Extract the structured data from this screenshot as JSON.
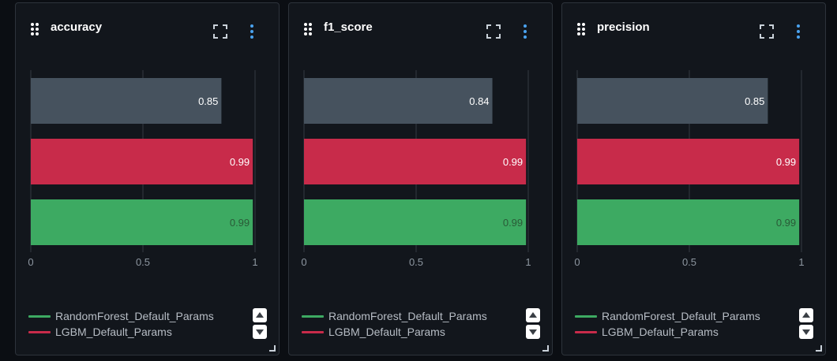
{
  "colors": {
    "RandomForest_Default_Params": "#3daa62",
    "LGBM_Default_Params": "#c82b4a",
    "unnamed": "#46525e",
    "axis_text": "#8d96a0",
    "grid": "#343a42"
  },
  "legend": [
    {
      "label": "RandomForest_Default_Params",
      "color_key": "RandomForest_Default_Params"
    },
    {
      "label": "LGBM_Default_Params",
      "color_key": "LGBM_Default_Params"
    }
  ],
  "chart_data": [
    {
      "type": "bar",
      "orientation": "horizontal",
      "title": "accuracy",
      "xlim": [
        0,
        1
      ],
      "x_ticks": [
        "0",
        "0.5",
        "1"
      ],
      "grid": true,
      "legend_position": "bottom",
      "series": [
        {
          "color_key": "unnamed",
          "value": 0.85,
          "label": "0.85"
        },
        {
          "name": "LGBM_Default_Params",
          "color_key": "LGBM_Default_Params",
          "value": 0.99,
          "label": "0.99"
        },
        {
          "name": "RandomForest_Default_Params",
          "color_key": "RandomForest_Default_Params",
          "value": 0.99,
          "label": "0.99"
        }
      ]
    },
    {
      "type": "bar",
      "orientation": "horizontal",
      "title": "f1_score",
      "xlim": [
        0,
        1
      ],
      "x_ticks": [
        "0",
        "0.5",
        "1"
      ],
      "grid": true,
      "legend_position": "bottom",
      "series": [
        {
          "color_key": "unnamed",
          "value": 0.84,
          "label": "0.84"
        },
        {
          "name": "LGBM_Default_Params",
          "color_key": "LGBM_Default_Params",
          "value": 0.99,
          "label": "0.99"
        },
        {
          "name": "RandomForest_Default_Params",
          "color_key": "RandomForest_Default_Params",
          "value": 0.99,
          "label": "0.99"
        }
      ]
    },
    {
      "type": "bar",
      "orientation": "horizontal",
      "title": "precision",
      "xlim": [
        0,
        1
      ],
      "x_ticks": [
        "0",
        "0.5",
        "1"
      ],
      "grid": true,
      "legend_position": "bottom",
      "series": [
        {
          "color_key": "unnamed",
          "value": 0.85,
          "label": "0.85"
        },
        {
          "name": "LGBM_Default_Params",
          "color_key": "LGBM_Default_Params",
          "value": 0.99,
          "label": "0.99"
        },
        {
          "name": "RandomForest_Default_Params",
          "color_key": "RandomForest_Default_Params",
          "value": 0.99,
          "label": "0.99"
        }
      ]
    }
  ]
}
